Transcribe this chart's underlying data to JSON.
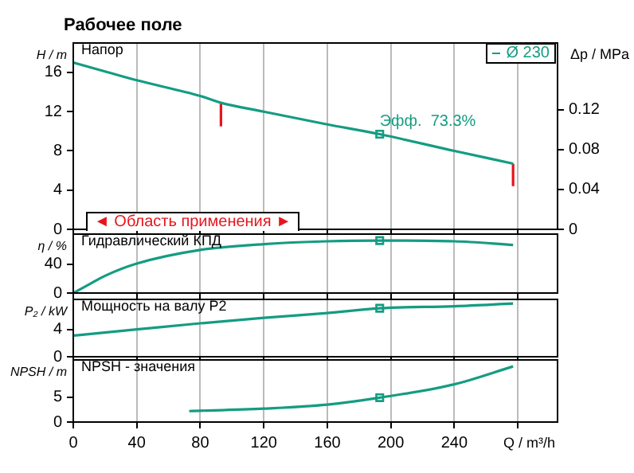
{
  "chart_data": [
    {
      "type": "line",
      "title": "Рабочее поле",
      "subtitle": "Напор",
      "ylabel": "H / m",
      "y2label": "Δp / MPa",
      "x": [
        0,
        20,
        40,
        80,
        93,
        120,
        160,
        193,
        240,
        277
      ],
      "series": [
        {
          "name": "Ø 230",
          "color": "#149c82",
          "values": [
            17.0,
            16.1,
            15.2,
            13.6,
            12.9,
            12.0,
            10.7,
            9.7,
            8.0,
            6.7
          ]
        },
        {
          "type": "scatter",
          "color": "#149c82",
          "x": [
            193
          ],
          "values": [
            9.7
          ],
          "marker": "square"
        },
        {
          "color": "#e8141c",
          "x": [
            93,
            93
          ],
          "values": [
            12.9,
            10.5
          ]
        },
        {
          "color": "#e8141c",
          "x": [
            277,
            277
          ],
          "values": [
            6.7,
            4.4
          ]
        }
      ],
      "xlim": [
        0,
        305
      ],
      "xticks": [
        0,
        40,
        80,
        120,
        160,
        200,
        240,
        280
      ],
      "ylim": [
        0,
        19
      ],
      "yticks": [
        0,
        4,
        8,
        12,
        16
      ],
      "y2lim": [
        0,
        0.187
      ],
      "y2ticks": [
        0,
        0.04,
        0.08,
        0.12
      ],
      "grid": "x",
      "legend": "top right",
      "tick_labels": "y",
      "marker": "none",
      "annotations": [
        {
          "text": "Эфф.  73.3%",
          "x": 193,
          "y": 9.7
        },
        "◄ Область применения ►"
      ]
    },
    {
      "type": "line",
      "subtitle": "Гидравлический КПД",
      "ylabel": "η / %",
      "x": [
        0,
        10,
        20,
        40,
        80,
        120,
        160,
        193,
        240,
        277
      ],
      "series": [
        {
          "color": "#149c82",
          "values": [
            0,
            12,
            24,
            41,
            60,
            68,
            72,
            73,
            72,
            67
          ]
        },
        {
          "type": "scatter",
          "color": "#149c82",
          "x": [
            193
          ],
          "values": [
            73
          ],
          "marker": "square"
        }
      ],
      "xlim": [
        0,
        305
      ],
      "xticks": [
        0,
        40,
        80,
        120,
        160,
        200,
        240,
        280
      ],
      "ylim": [
        0,
        82
      ],
      "yticks": [
        0,
        40
      ],
      "grid": "x",
      "tick_labels": "y",
      "marker": "none"
    },
    {
      "type": "line",
      "subtitle": "Мощность на валу P2",
      "ylabel": "P₂ / kW",
      "x": [
        0,
        40,
        80,
        120,
        160,
        193,
        240,
        277
      ],
      "series": [
        {
          "color": "#149c82",
          "values": [
            3.1,
            4.0,
            4.9,
            5.7,
            6.4,
            7.1,
            7.4,
            7.8
          ]
        },
        {
          "type": "scatter",
          "color": "#149c82",
          "x": [
            193
          ],
          "values": [
            7.1
          ],
          "marker": "square"
        }
      ],
      "xlim": [
        0,
        305
      ],
      "xticks": [
        0,
        40,
        80,
        120,
        160,
        200,
        240,
        280
      ],
      "ylim": [
        0,
        8.4
      ],
      "yticks": [
        0,
        4
      ],
      "grid": "x",
      "tick_labels": "y",
      "marker": "none"
    },
    {
      "type": "line",
      "subtitle": "NPSH - значения",
      "ylabel": "NPSH / m",
      "xlabel": "Q / m³/h",
      "x": [
        73,
        120,
        160,
        193,
        240,
        277
      ],
      "series": [
        {
          "color": "#149c82",
          "values": [
            2.2,
            2.7,
            3.5,
            4.9,
            7.6,
            11.2
          ]
        },
        {
          "type": "scatter",
          "color": "#149c82",
          "x": [
            193
          ],
          "values": [
            4.9
          ],
          "marker": "square"
        }
      ],
      "xlim": [
        0,
        305
      ],
      "xticks": [
        0,
        40,
        80,
        120,
        160,
        200,
        240,
        {
          "value": 280,
          "label": null
        }
      ],
      "ylim": [
        0,
        12.5
      ],
      "yticks": [
        0,
        5
      ],
      "grid": "x",
      "marker": "none"
    }
  ]
}
